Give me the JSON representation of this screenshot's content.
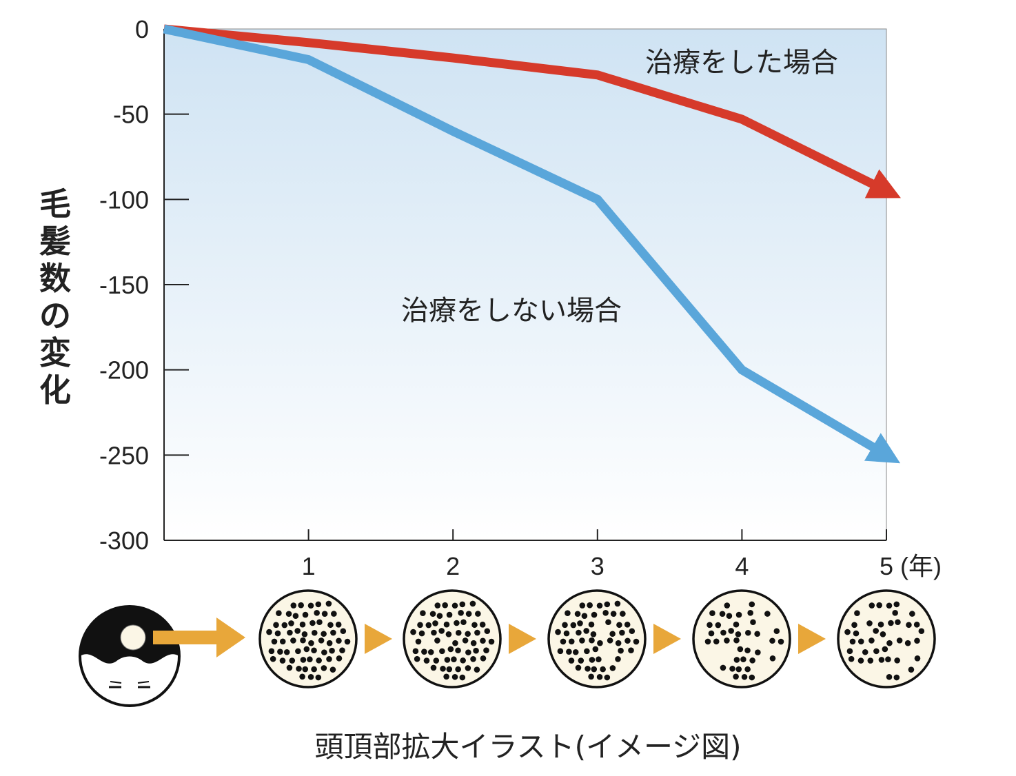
{
  "chart_data": {
    "type": "line",
    "ylabel": "毛髪数の変化",
    "x": [
      0,
      1,
      2,
      3,
      4,
      5
    ],
    "x_tick_labels": [
      "1",
      "2",
      "3",
      "4",
      "5"
    ],
    "x_unit": "(年)",
    "y_ticks": [
      "0",
      "-50",
      "-100",
      "-150",
      "-200",
      "-250",
      "-300"
    ],
    "ylim": [
      -300,
      0
    ],
    "xlim": [
      0,
      5
    ],
    "grid": false,
    "series": [
      {
        "name": "治療をした場合",
        "color": "#d63a2a",
        "x": [
          0,
          1,
          2,
          3,
          4,
          5
        ],
        "values": [
          0,
          -8,
          -17,
          -27,
          -53,
          -95
        ]
      },
      {
        "name": "治療をしない場合",
        "color": "#5aa6da",
        "x": [
          0,
          1,
          2,
          3,
          4,
          5
        ],
        "values": [
          0,
          -18,
          -60,
          -100,
          -200,
          -250
        ]
      }
    ]
  },
  "illustration": {
    "caption": "頭頂部拡大イラスト(イメージ図)",
    "arrow_color": "#e8a73a",
    "density_stages": [
      1.0,
      0.95,
      0.85,
      0.72,
      0.6
    ]
  }
}
